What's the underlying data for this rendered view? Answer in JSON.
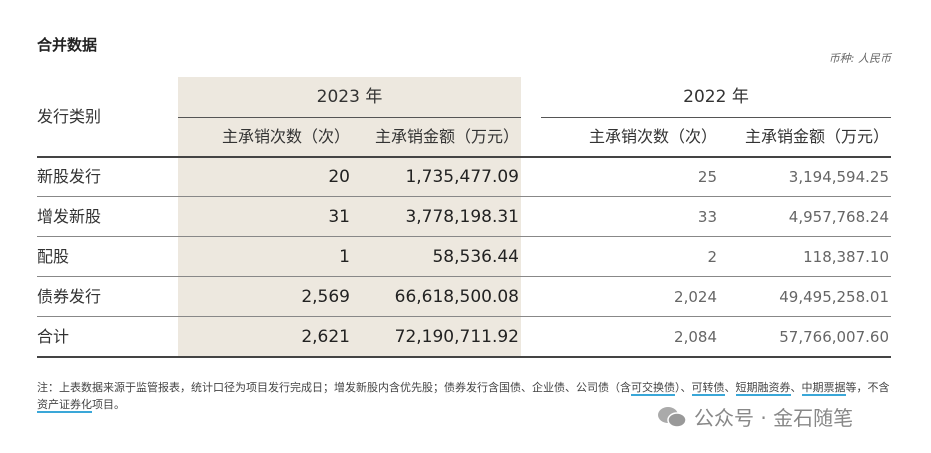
{
  "title": "合并数据",
  "currency": "币种: 人民币",
  "table": {
    "header": {
      "category": "发行类别",
      "groups": [
        "2023 年",
        "2022 年"
      ],
      "columns": [
        "主承销次数（次）",
        "主承销金额（万元）",
        "主承销次数（次）",
        "主承销金额（万元）"
      ]
    },
    "rows": [
      [
        "新股发行",
        "20",
        "1,735,477.09",
        "25",
        "3,194,594.25"
      ],
      [
        "增发新股",
        "31",
        "3,778,198.31",
        "33",
        "4,957,768.24"
      ],
      [
        "配股",
        "1",
        "58,536.44",
        "2",
        "118,387.10"
      ],
      [
        "债券发行",
        "2,569",
        "66,618,500.08",
        "2,024",
        "49,495,258.01"
      ],
      [
        "合计",
        "2,621",
        "72,190,711.92",
        "2,084",
        "57,766,007.60"
      ]
    ]
  },
  "note": [
    {
      "text": "注：上表数据来源于监管报表，统计口径为项目发行完成日；增发新股内含优先股；债券发行含国债、企业债、公司债（含",
      "link": false
    },
    {
      "text": "可交换债",
      "link": true
    },
    {
      "text": "）、",
      "link": false
    },
    {
      "text": "可转债",
      "link": true
    },
    {
      "text": "、",
      "link": false
    },
    {
      "text": "短期融资券",
      "link": true
    },
    {
      "text": "、",
      "link": false
    },
    {
      "text": "中期票据",
      "link": true
    },
    {
      "text": "等，不含",
      "link": false
    },
    {
      "text": "资产证券化",
      "link": true
    },
    {
      "text": "项目。",
      "link": false
    }
  ],
  "watermark": "公众号 · 金石随笔"
}
